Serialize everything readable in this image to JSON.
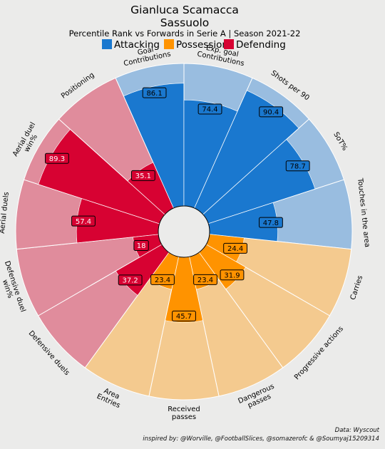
{
  "header": {
    "title": "Gianluca Scamacca",
    "subtitle": "Sassuolo",
    "subtitle2": "Percentile Rank vs Forwards in Serie A | Season 2021-22"
  },
  "legend": [
    {
      "label": "Attacking",
      "color": "#1a78cf"
    },
    {
      "label": "Possession",
      "color": "#ff9300"
    },
    {
      "label": "Defending",
      "color": "#d70232"
    }
  ],
  "colors": {
    "Attacking": {
      "full": "#1a78cf",
      "light": "#99bde0"
    },
    "Possession": {
      "full": "#ff9300",
      "light": "#f4ca8f"
    },
    "Defending": {
      "full": "#d70232",
      "light": "#e08c9c"
    },
    "background": "#ebebea"
  },
  "chart_data": {
    "type": "polar-bar",
    "title": "Gianluca Scamacca",
    "subtitle": "Sassuolo",
    "range": [
      0,
      100
    ],
    "categories": [
      {
        "label": "Goal\nContributions",
        "value": 86.1,
        "group": "Attacking"
      },
      {
        "label": "Exp. goal\nContributions",
        "value": 74.4,
        "group": "Attacking"
      },
      {
        "label": "Shots per 90",
        "value": 90.4,
        "group": "Attacking"
      },
      {
        "label": "SoT%",
        "value": 78.7,
        "group": "Attacking"
      },
      {
        "label": "Touches in the area",
        "value": 47.8,
        "group": "Attacking"
      },
      {
        "label": "Carries",
        "value": 24.4,
        "group": "Possession"
      },
      {
        "label": "Progressive actions",
        "value": 31.9,
        "group": "Possession"
      },
      {
        "label": "Dangerous\npasses",
        "value": 23.4,
        "group": "Possession"
      },
      {
        "label": "Received\npasses",
        "value": 45.7,
        "group": "Possession"
      },
      {
        "label": "Area\nEntries",
        "value": 23.4,
        "group": "Possession"
      },
      {
        "label": "Defensive duels",
        "value": 37.2,
        "group": "Defending"
      },
      {
        "label": "Defensive duel\nwin%",
        "value": 18,
        "group": "Defending"
      },
      {
        "label": "Aerial duels",
        "value": 57.4,
        "group": "Defending"
      },
      {
        "label": "Aerial duel\nwin%",
        "value": 89.3,
        "group": "Defending"
      },
      {
        "label": "Positioning",
        "value": 35.1,
        "group": "Defending"
      }
    ]
  },
  "footer": {
    "source": "Data: Wyscout",
    "credits": "inspired by: @Worville, @FootballSlices, @somazerofc & @Soumyaj15209314"
  }
}
